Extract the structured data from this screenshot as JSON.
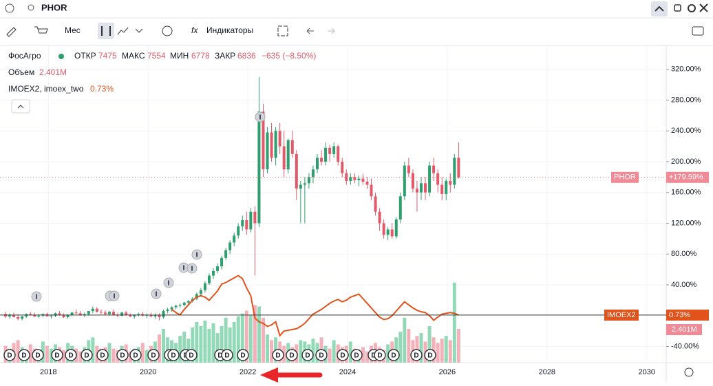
{
  "toolbar": {
    "symbol": "PHOR",
    "interval": "Мес",
    "indicators": "Индикаторы"
  },
  "legend": {
    "name": "ФосАгро",
    "open_label": "ОТКР",
    "open": 7475,
    "high_label": "МАКС",
    "high": 7554,
    "low_label": "МИН",
    "low": 6778,
    "close_label": "ЗАКР",
    "close": 6836,
    "change": "−635 (−8.50%)",
    "volume_label": "Объем",
    "volume": "2.401M",
    "index_label": "IMOEX2, imoex_two",
    "index_value": "0.73%"
  },
  "chart_data": {
    "type": "candlestick",
    "xlim": [
      2017.03,
      2030.39
    ],
    "xticks": [
      2018,
      2020,
      2022,
      2024,
      2026,
      2028,
      2030
    ],
    "ylim": [
      -61,
      351
    ],
    "yticks": [
      {
        "value": -40,
        "label": "-40.00%"
      },
      {
        "value": 40,
        "label": "40.00%"
      },
      {
        "value": 80,
        "label": "80.00%"
      },
      {
        "value": 120,
        "label": "120.00%"
      },
      {
        "value": 160,
        "label": "160.00%"
      },
      {
        "value": 200,
        "label": "200.00%"
      },
      {
        "value": 240,
        "label": "240.00%"
      },
      {
        "value": 280,
        "label": "280.00%"
      },
      {
        "value": 320,
        "label": "320.00%"
      }
    ],
    "grid": true,
    "up_color": "#2f9e6f",
    "down_color": "#e15a6a",
    "up_volume_color": "#93d9b8",
    "down_volume_color": "#f3b1ba",
    "line_color": "#e2531c",
    "candles": [
      [
        2,
        5,
        -3,
        -1
      ],
      [
        -1,
        3,
        -4,
        1
      ],
      [
        1,
        4,
        -2,
        -2
      ],
      [
        -2,
        2,
        -6,
        -4
      ],
      [
        -4,
        0,
        -6,
        -1
      ],
      [
        -1,
        3,
        -3,
        2
      ],
      [
        2,
        5,
        0,
        1
      ],
      [
        1,
        4,
        -2,
        -1
      ],
      [
        -1,
        2,
        -3,
        0
      ],
      [
        0,
        3,
        -2,
        2
      ],
      [
        2,
        4,
        -1,
        -1
      ],
      [
        -1,
        2,
        -4,
        0
      ],
      [
        0,
        4,
        -2,
        3
      ],
      [
        3,
        6,
        0,
        1
      ],
      [
        1,
        3,
        -3,
        -2
      ],
      [
        -2,
        2,
        -4,
        1
      ],
      [
        1,
        5,
        -1,
        4
      ],
      [
        4,
        8,
        2,
        3
      ],
      [
        3,
        6,
        0,
        1
      ],
      [
        1,
        4,
        -2,
        2
      ],
      [
        2,
        5,
        0,
        6
      ],
      [
        6,
        12,
        3,
        9
      ],
      [
        9,
        11,
        4,
        5
      ],
      [
        5,
        8,
        2,
        4
      ],
      [
        4,
        7,
        1,
        2
      ],
      [
        2,
        6,
        0,
        5
      ],
      [
        5,
        8,
        1,
        1
      ],
      [
        1,
        4,
        -2,
        0
      ],
      [
        0,
        5,
        -1,
        4
      ],
      [
        4,
        6,
        0,
        1
      ],
      [
        1,
        3,
        -2,
        -1
      ],
      [
        -1,
        2,
        -4,
        1
      ],
      [
        1,
        4,
        -1,
        2
      ],
      [
        2,
        5,
        -1,
        0
      ],
      [
        0,
        3,
        -3,
        1
      ],
      [
        1,
        4,
        -2,
        -1
      ],
      [
        -1,
        3,
        -4,
        1
      ],
      [
        1,
        3,
        -6,
        -2
      ],
      [
        -2,
        8,
        -4,
        6
      ],
      [
        6,
        10,
        3,
        8
      ],
      [
        8,
        12,
        5,
        11
      ],
      [
        11,
        14,
        8,
        13
      ],
      [
        13,
        16,
        10,
        14
      ],
      [
        14,
        18,
        12,
        17
      ],
      [
        17,
        20,
        14,
        19
      ],
      [
        19,
        24,
        17,
        22
      ],
      [
        22,
        30,
        20,
        28
      ],
      [
        28,
        36,
        25,
        33
      ],
      [
        33,
        45,
        30,
        42
      ],
      [
        42,
        55,
        40,
        52
      ],
      [
        52,
        62,
        48,
        58
      ],
      [
        58,
        68,
        55,
        64
      ],
      [
        64,
        78,
        60,
        75
      ],
      [
        75,
        88,
        72,
        85
      ],
      [
        85,
        98,
        80,
        95
      ],
      [
        95,
        108,
        90,
        104
      ],
      [
        104,
        120,
        100,
        116
      ],
      [
        116,
        130,
        110,
        124
      ],
      [
        124,
        135,
        105,
        112
      ],
      [
        112,
        140,
        108,
        135
      ],
      [
        135,
        142,
        52,
        120
      ],
      [
        120,
        310,
        115,
        265
      ],
      [
        265,
        275,
        180,
        190
      ],
      [
        190,
        245,
        185,
        238
      ],
      [
        238,
        250,
        200,
        205
      ],
      [
        205,
        245,
        195,
        240
      ],
      [
        240,
        250,
        210,
        220
      ],
      [
        220,
        240,
        180,
        190
      ],
      [
        190,
        230,
        185,
        228
      ],
      [
        228,
        240,
        205,
        210
      ],
      [
        210,
        215,
        150,
        165
      ],
      [
        165,
        175,
        120,
        170
      ],
      [
        170,
        180,
        120,
        172
      ],
      [
        172,
        185,
        165,
        180
      ],
      [
        180,
        195,
        172,
        190
      ],
      [
        190,
        210,
        185,
        205
      ],
      [
        205,
        215,
        195,
        200
      ],
      [
        200,
        225,
        195,
        218
      ],
      [
        218,
        222,
        200,
        210
      ],
      [
        210,
        225,
        205,
        220
      ],
      [
        220,
        222,
        195,
        200
      ],
      [
        200,
        205,
        180,
        185
      ],
      [
        185,
        190,
        170,
        175
      ],
      [
        175,
        185,
        170,
        180
      ],
      [
        180,
        185,
        172,
        176
      ],
      [
        176,
        182,
        168,
        178
      ],
      [
        178,
        184,
        170,
        174
      ],
      [
        174,
        180,
        165,
        170
      ],
      [
        170,
        178,
        150,
        155
      ],
      [
        155,
        160,
        130,
        135
      ],
      [
        135,
        140,
        110,
        120
      ],
      [
        120,
        125,
        100,
        105
      ],
      [
        105,
        115,
        98,
        112
      ],
      [
        112,
        120,
        100,
        103
      ],
      [
        103,
        128,
        100,
        125
      ],
      [
        125,
        160,
        120,
        155
      ],
      [
        155,
        200,
        150,
        195
      ],
      [
        195,
        205,
        180,
        185
      ],
      [
        185,
        190,
        160,
        165
      ],
      [
        165,
        175,
        135,
        160
      ],
      [
        160,
        180,
        150,
        172
      ],
      [
        172,
        180,
        150,
        160
      ],
      [
        160,
        200,
        155,
        195
      ],
      [
        195,
        205,
        175,
        185
      ],
      [
        185,
        190,
        160,
        170
      ],
      [
        170,
        180,
        150,
        158
      ],
      [
        158,
        178,
        150,
        175
      ],
      [
        175,
        185,
        160,
        170
      ],
      [
        170,
        210,
        165,
        205
      ],
      [
        205,
        225,
        178,
        179.59
      ]
    ],
    "volume": [
      1.2,
      1.0,
      1.4,
      1.6,
      1.1,
      0.9,
      1.3,
      1.0,
      0.8,
      1.5,
      1.2,
      1.0,
      1.3,
      1.1,
      0.9,
      1.4,
      1.2,
      1.0,
      0.8,
      1.1,
      1.6,
      1.8,
      1.2,
      1.0,
      1.1,
      1.4,
      1.0,
      0.9,
      1.2,
      1.3,
      0.8,
      1.0,
      1.1,
      1.4,
      0.9,
      1.2,
      1.5,
      2.0,
      2.4,
      1.8,
      1.6,
      1.4,
      1.9,
      2.2,
      1.7,
      2.5,
      2.9,
      2.6,
      3.0,
      2.4,
      2.8,
      2.1,
      2.6,
      3.2,
      2.5,
      2.9,
      3.3,
      3.5,
      3.7,
      3.4,
      4.1,
      4.0,
      3.2,
      2.0,
      1.6,
      1.8,
      1.5,
      1.2,
      1.4,
      1.1,
      1.3,
      1.6,
      1.5,
      1.3,
      1.7,
      1.4,
      1.8,
      1.2,
      1.0,
      1.6,
      1.3,
      1.1,
      1.2,
      1.5,
      1.0,
      0.9,
      1.1,
      0.8,
      1.2,
      1.4,
      1.1,
      0.9,
      1.3,
      1.5,
      1.8,
      2.2,
      3.2,
      2.4,
      1.6,
      1.9,
      2.1,
      1.5,
      2.6,
      1.8,
      1.4,
      1.7,
      1.9,
      1.6,
      5.7,
      2.401
    ],
    "index_line": [
      null,
      null,
      null,
      null,
      null,
      null,
      null,
      null,
      null,
      null,
      null,
      null,
      null,
      null,
      null,
      null,
      null,
      null,
      null,
      null,
      null,
      null,
      null,
      null,
      null,
      null,
      null,
      null,
      null,
      null,
      null,
      null,
      null,
      null,
      null,
      null,
      null,
      null,
      null,
      null,
      8,
      4,
      1,
      8,
      14,
      20,
      24,
      26,
      24,
      20,
      26,
      32,
      41,
      43,
      46,
      49,
      52,
      48,
      36,
      26,
      -3,
      -8,
      -10,
      -14,
      -12,
      -8,
      -26,
      -20,
      -19,
      -18,
      -17,
      -14,
      -10,
      -4,
      2,
      5,
      8,
      12,
      16,
      19,
      21,
      18,
      20,
      24,
      26,
      28,
      22,
      16,
      10,
      4,
      -2,
      -5,
      -4,
      0,
      6,
      12,
      18,
      14,
      10,
      7,
      5,
      4,
      0,
      -6,
      -2,
      2,
      3,
      4,
      3,
      0.73
    ],
    "phor_name": "PHOR",
    "phor_label": "+179.59%",
    "index_name": "IMOEX2",
    "index_label": "0.73%",
    "volume_label": "2.401M",
    "dividends": [
      "D",
      "D",
      "D",
      "D",
      "D",
      "D",
      "D",
      "D",
      "D",
      "D",
      "D",
      "D",
      "D",
      "D",
      "D",
      "D",
      "D",
      "D",
      "D",
      "D",
      "D",
      "D",
      "D",
      "D",
      "D",
      "D",
      "D",
      "D"
    ],
    "ideas": [
      "I",
      "I",
      "I",
      "I",
      "I",
      "I",
      "I",
      "I",
      "I"
    ]
  }
}
